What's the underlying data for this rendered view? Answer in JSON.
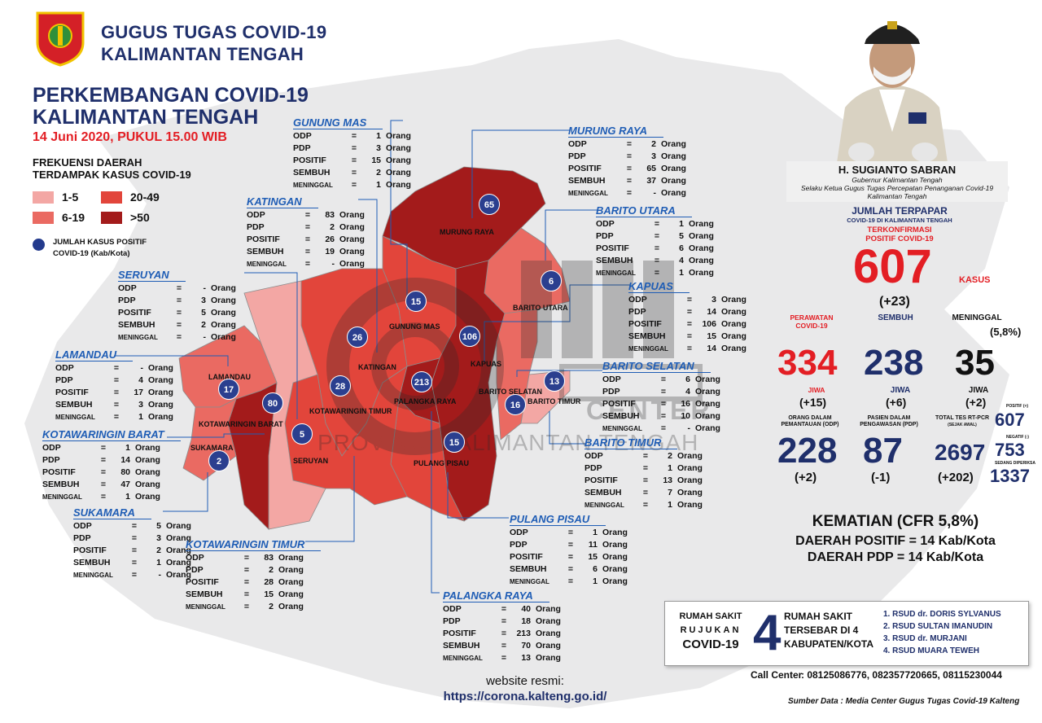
{
  "header": {
    "org_line1": "GUGUS TUGAS COVID-19",
    "org_line2": "KALIMANTAN TENGAH",
    "title_line1": "PERKEMBANGAN COVID-19",
    "title_line2": "KALIMANTAN TENGAH",
    "date": "14 Juni 2020, PUKUL 15.00 WIB"
  },
  "legend": {
    "title_line1": "FREKUENSI DAERAH",
    "title_line2": "TERDAMPAK KASUS COVID-19",
    "items": [
      {
        "label": "1-5",
        "color": "#f3a7a4"
      },
      {
        "label": "20-49",
        "color": "#e2453b"
      },
      {
        "label": "6-19",
        "color": "#ea6a62"
      },
      {
        "label": ">50",
        "color": "#a31b1b"
      }
    ],
    "dot_label_line1": "JUMLAH KASUS POSITIF",
    "dot_label_line2": "COVID-19 (Kab/Kota)"
  },
  "row_labels": {
    "odp": "ODP",
    "pdp": "PDP",
    "positif": "POSITIF",
    "sembuh": "SEMBUH",
    "meninggal": "MENINGGAL",
    "eq": "=",
    "eq2": "=",
    "unit": "Orang"
  },
  "regions": [
    {
      "id": "gunung-mas",
      "name": "GUNUNG MAS",
      "odp": "1",
      "pdp": "3",
      "positif": "15",
      "sembuh": "2",
      "meninggal": "1"
    },
    {
      "id": "murung-raya",
      "name": "MURUNG RAYA",
      "odp": "2",
      "pdp": "3",
      "positif": "65",
      "sembuh": "37",
      "meninggal": "-"
    },
    {
      "id": "katingan",
      "name": "KATINGAN",
      "odp": "83",
      "pdp": "2",
      "positif": "26",
      "sembuh": "19",
      "meninggal": "-"
    },
    {
      "id": "barito-utara",
      "name": "BARITO UTARA",
      "odp": "1",
      "pdp": "5",
      "positif": "6",
      "sembuh": "4",
      "meninggal": "1"
    },
    {
      "id": "seruyan",
      "name": "SERUYAN",
      "odp": "-",
      "pdp": "3",
      "positif": "5",
      "sembuh": "2",
      "meninggal": "-"
    },
    {
      "id": "kapuas",
      "name": "KAPUAS",
      "odp": "3",
      "pdp": "14",
      "positif": "106",
      "sembuh": "15",
      "meninggal": "14"
    },
    {
      "id": "lamandau",
      "name": "LAMANDAU",
      "odp": "-",
      "pdp": "4",
      "positif": "17",
      "sembuh": "3",
      "meninggal": "1"
    },
    {
      "id": "barito-selatan",
      "name": "BARITO SELATAN",
      "odp": "6",
      "pdp": "4",
      "positif": "16",
      "sembuh": "10",
      "meninggal": "-"
    },
    {
      "id": "kotawaringin-barat",
      "name": "KOTAWARINGIN BARAT",
      "odp": "1",
      "pdp": "14",
      "positif": "80",
      "sembuh": "47",
      "meninggal": "1"
    },
    {
      "id": "barito-timur",
      "name": "BARITO TIMUR",
      "odp": "2",
      "pdp": "1",
      "positif": "13",
      "sembuh": "7",
      "meninggal": "1"
    },
    {
      "id": "sukamara",
      "name": "SUKAMARA",
      "odp": "5",
      "pdp": "3",
      "positif": "2",
      "sembuh": "1",
      "meninggal": "-"
    },
    {
      "id": "pulang-pisau",
      "name": "PULANG PISAU",
      "odp": "1",
      "pdp": "11",
      "positif": "15",
      "sembuh": "6",
      "meninggal": "1"
    },
    {
      "id": "kotawaringin-timur",
      "name": "KOTAWARINGIN TIMUR",
      "odp": "83",
      "pdp": "2",
      "positif": "28",
      "sembuh": "15",
      "meninggal": "2"
    },
    {
      "id": "palangka-raya",
      "name": "PALANGKA RAYA",
      "odp": "40",
      "pdp": "18",
      "positif": "213",
      "sembuh": "70",
      "meninggal": "13"
    }
  ],
  "map_labels": {
    "murung_raya": "MURUNG RAYA",
    "barito_utara": "BARITO UTARA",
    "gunung_mas": "GUNUNG MAS",
    "katingan": "KATINGAN",
    "kapuas": "KAPUAS",
    "lamandau": "LAMANDAU",
    "barito_selatan": "BARITO SELATAN",
    "barito_timur": "BARITO TIMUR",
    "palangka_raya": "PALANGKA RAYA",
    "kotawaringin_barat": "KOTAWARINGIN BARAT",
    "kotawaringin_timur": "KOTAWARINGIN TIMUR",
    "sukamara": "SUKAMARA",
    "seruyan": "SERUYAN",
    "pulang_pisau": "PULANG PISAU"
  },
  "bubbles": {
    "murung_raya": "65",
    "barito_utara": "6",
    "gunung_mas": "15",
    "katingan": "26",
    "kapuas": "106",
    "lamandau": "17",
    "kotawaringin_barat": "80",
    "kotawaringin_timur": "28",
    "palangka_raya": "213",
    "barito_selatan": "16",
    "barito_timur": "13",
    "sukamara": "2",
    "seruyan": "5",
    "pulang_pisau": "15"
  },
  "watermark": {
    "line1": "PROVINSI KALIMANTAN TENGAH",
    "center": "CENTER"
  },
  "governor": {
    "name": "H. SUGIANTO SABRAN",
    "role1": "Gubernur Kalimantan Tengah",
    "role2": "Selaku Ketua Gugus Tugas Percepatan Penanganan Covid-19",
    "role3": "Kalimantan Tengah"
  },
  "summary": {
    "terpapar_title": "JUMLAH TERPAPAR",
    "terpapar_sub": "COVID-19 DI KALIMANTAN TENGAH",
    "terkonfirmasi1": "TERKONFIRMASI",
    "terkonfirmasi2": "POSITIF COVID-19",
    "total": "607",
    "kasus": "KASUS",
    "total_delta": "(+23)",
    "perawatan1": "PERAWATAN",
    "perawatan2": "COVID-19",
    "sembuh_label": "SEMBUH",
    "meninggal_label": "MENINGGAL",
    "meninggal_pct": "(5,8%)",
    "perawatan": "334",
    "sembuh": "238",
    "meninggal": "35",
    "jiwa": "JIWA",
    "perawatan_delta": "(+15)",
    "sembuh_delta": "(+6)",
    "meninggal_delta": "(+2)",
    "odp_label1": "ORANG DALAM",
    "odp_label2": "PEMANTAUAN (ODP)",
    "pdp_label1": "PASIEN DALAM",
    "pdp_label2": "PENGAWASAN (PDP)",
    "tes_label1": "TOTAL TES RT-PCR",
    "tes_label2": "(SEJAK AWAL)",
    "odp": "228",
    "odp_delta": "(+2)",
    "pdp": "87",
    "pdp_delta": "(-1)",
    "tes": "2697",
    "tes_delta": "(+202)",
    "positif_small_label": "POSITIF (+)",
    "positif_small": "607",
    "negatif_small_label": "NEGATIF (-)",
    "negatif_small": "753",
    "diperiksa_label": "SEDANG DIPERIKSA",
    "diperiksa_small": "1337",
    "kematian": "KEMATIAN (CFR 5,8%)",
    "daerah_positif": "DAERAH POSITIF = 14 Kab/Kota",
    "daerah_pdp": "DAERAH PDP = 14 Kab/Kota"
  },
  "hospital": {
    "rs1": "RUMAH SAKIT",
    "rs2": "RUJUKAN",
    "rs3": "COVID-19",
    "count": "4",
    "desc1": "RUMAH SAKIT",
    "desc2": "TERSEBAR DI 4",
    "desc3": "KABUPATEN/KOTA",
    "list": [
      "1. RSUD dr. DORIS SYLVANUS",
      "2. RSUD SULTAN IMANUDIN",
      "3. RSUD dr. MURJANI",
      "4. RSUD MUARA TEWEH"
    ]
  },
  "footer": {
    "website_label": "website resmi:",
    "website": "https://corona.kalteng.go.id/",
    "call_label": "Call Center",
    "call": ": 08125086776, 082357720665, 08115230044",
    "source": "Sumber Data : Media Center Gugus Tugas Covid-19 Kalteng"
  },
  "colors": {
    "navy": "#1f2f6b",
    "red": "#e31e24",
    "dark_red": "#a31b1b",
    "mid_red": "#e2453b",
    "light_red": "#ea6a62",
    "pink": "#f3a7a4",
    "bubble": "#2b3f8f"
  }
}
